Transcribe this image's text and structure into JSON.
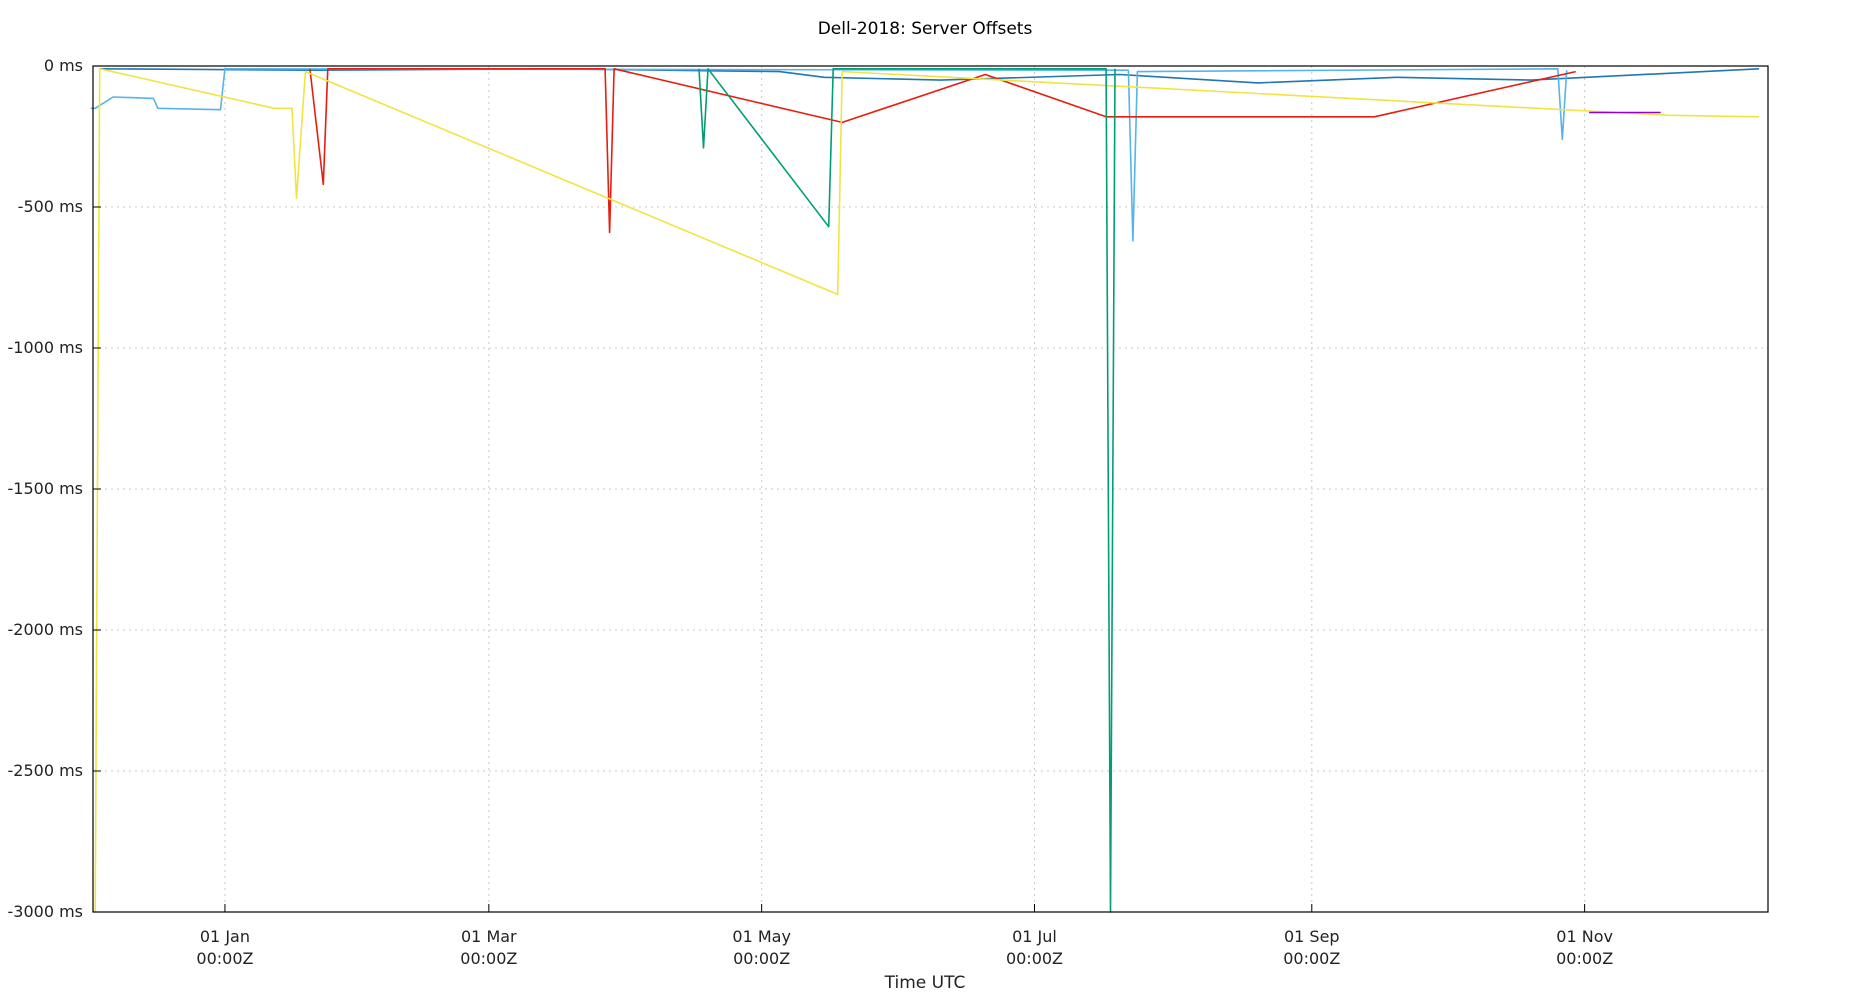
{
  "chart_data": {
    "type": "line",
    "title": "Dell-2018: Server Offsets",
    "xlabel": "Time UTC",
    "ylabel": "",
    "x_range": [
      "2017-12-02T12:00:00Z",
      "2018-12-12T00:00:00Z"
    ],
    "ylim": [
      -3000,
      0
    ],
    "y_unit": "ms",
    "grid": true,
    "legend": "none",
    "y_ticks": [
      {
        "value": 0,
        "label": "0 ms"
      },
      {
        "value": -500,
        "label": "-500 ms"
      },
      {
        "value": -1000,
        "label": "-1000 ms"
      },
      {
        "value": -1500,
        "label": "-1500 ms"
      },
      {
        "value": -2000,
        "label": "-2000 ms"
      },
      {
        "value": -2500,
        "label": "-2500 ms"
      },
      {
        "value": -3000,
        "label": "-3000 ms"
      }
    ],
    "x_ticks": [
      {
        "value": "2018-01-01T00:00:00Z",
        "label_line1": "01 Jan",
        "label_line2": "00:00Z"
      },
      {
        "value": "2018-03-01T00:00:00Z",
        "label_line1": "01 Mar",
        "label_line2": "00:00Z"
      },
      {
        "value": "2018-05-01T00:00:00Z",
        "label_line1": "01 May",
        "label_line2": "00:00Z"
      },
      {
        "value": "2018-07-01T00:00:00Z",
        "label_line1": "01 Jul",
        "label_line2": "00:00Z"
      },
      {
        "value": "2018-09-01T00:00:00Z",
        "label_line1": "01 Sep",
        "label_line2": "00:00Z"
      },
      {
        "value": "2018-11-01T00:00:00Z",
        "label_line1": "01 Nov",
        "label_line2": "00:00Z"
      }
    ],
    "series": [
      {
        "color": "#1f77b4",
        "points": [
          [
            "2017-12-04",
            -10
          ],
          [
            "2018-01-20",
            -15
          ],
          [
            "2018-03-15",
            -10
          ],
          [
            "2018-05-05",
            -20
          ],
          [
            "2018-05-15",
            -40
          ],
          [
            "2018-06-10",
            -50
          ],
          [
            "2018-07-20",
            -30
          ],
          [
            "2018-08-20",
            -60
          ],
          [
            "2018-09-20",
            -40
          ],
          [
            "2018-10-20",
            -50
          ],
          [
            "2018-12-10",
            -10
          ]
        ]
      },
      {
        "color": "#56b4e9",
        "points": [
          [
            "2017-12-02",
            -150
          ],
          [
            "2017-12-03",
            -150
          ],
          [
            "2017-12-07",
            -110
          ],
          [
            "2017-12-16",
            -115
          ],
          [
            "2017-12-17",
            -150
          ],
          [
            "2017-12-31",
            -155
          ],
          [
            "2018-01-01",
            -10
          ],
          [
            "2018-07-22",
            -15
          ],
          [
            "2018-07-23",
            -620
          ],
          [
            "2018-07-24",
            -20
          ],
          [
            "2018-10-26",
            -10
          ],
          [
            "2018-10-27",
            -260
          ],
          [
            "2018-10-28",
            -15
          ]
        ]
      },
      {
        "color": "#e51e10",
        "points": [
          [
            "2018-01-20",
            -10
          ],
          [
            "2018-01-23",
            -420
          ],
          [
            "2018-01-24",
            -10
          ],
          [
            "2018-03-27",
            -10
          ],
          [
            "2018-03-28",
            -590
          ],
          [
            "2018-03-29",
            -10
          ],
          [
            "2018-05-19",
            -200
          ],
          [
            "2018-06-20",
            -30
          ],
          [
            "2018-07-17",
            -180
          ],
          [
            "2018-07-20",
            -180
          ],
          [
            "2018-08-15",
            -180
          ],
          [
            "2018-09-15",
            -180
          ],
          [
            "2018-10-30",
            -20
          ]
        ]
      },
      {
        "color": "#f0e442",
        "points": [
          [
            "2017-12-03",
            -3000
          ],
          [
            "2017-12-04",
            -10
          ],
          [
            "2018-01-12",
            -150
          ],
          [
            "2018-01-16",
            -150
          ],
          [
            "2018-01-17",
            -470
          ],
          [
            "2018-01-19",
            -20
          ],
          [
            "2018-05-18",
            -810
          ],
          [
            "2018-05-19",
            -20
          ],
          [
            "2018-11-20",
            -175
          ],
          [
            "2018-12-10",
            -180
          ]
        ]
      },
      {
        "color": "#009e73",
        "points": [
          [
            "2018-04-17",
            -10
          ],
          [
            "2018-04-18",
            -290
          ],
          [
            "2018-04-19",
            -10
          ],
          [
            "2018-05-16",
            -570
          ],
          [
            "2018-05-17",
            -10
          ],
          [
            "2018-07-17",
            -10
          ],
          [
            "2018-07-18",
            -3000
          ],
          [
            "2018-07-19",
            -10
          ]
        ]
      },
      {
        "color": "#9400d3",
        "points": [
          [
            "2018-11-02",
            -165
          ],
          [
            "2018-11-18",
            -165
          ]
        ]
      }
    ]
  }
}
